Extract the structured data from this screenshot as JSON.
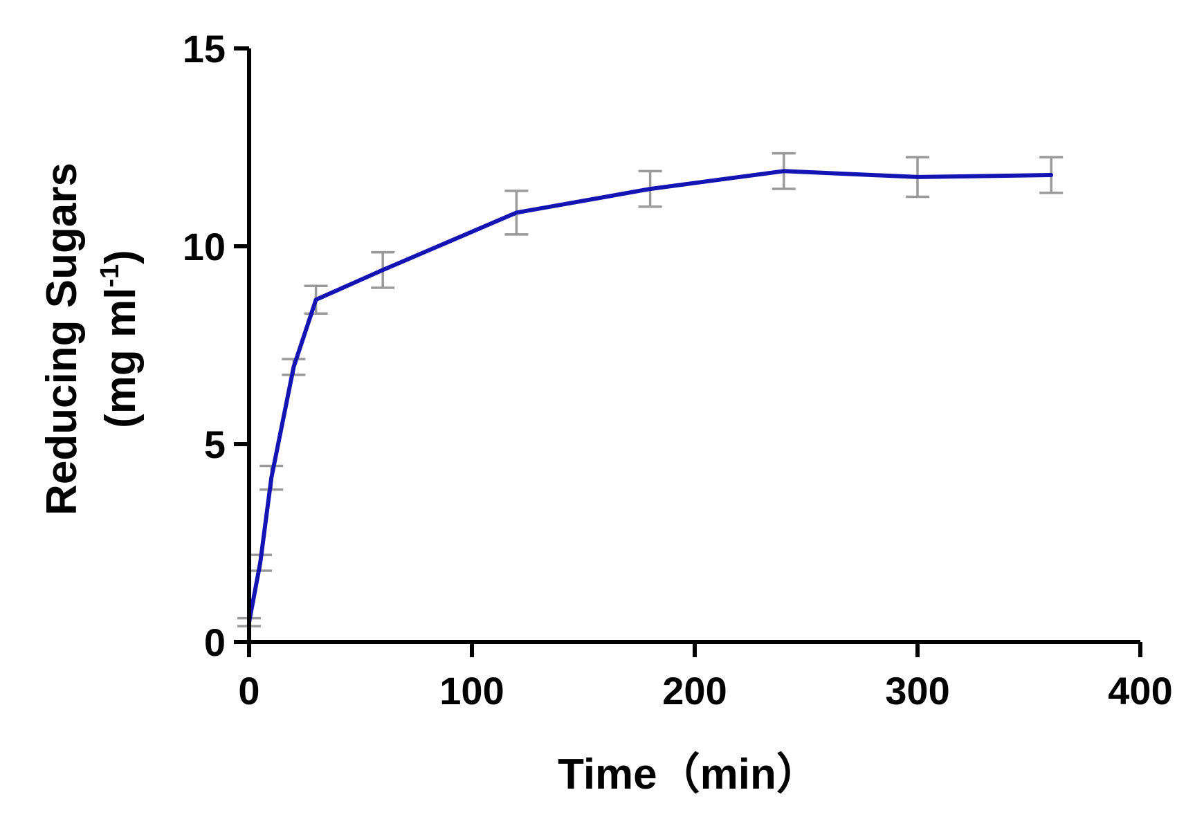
{
  "chart_data": {
    "type": "line",
    "xlabel": "Time（min）",
    "ylabel_line1": "Reducing Sugars",
    "ylabel_line2_main": "(mg ml",
    "ylabel_line2_sup": "-1",
    "ylabel_line2_end": ")",
    "xlim": [
      0,
      400
    ],
    "ylim": [
      0,
      15
    ],
    "xticks": [
      0,
      100,
      200,
      300,
      400
    ],
    "yticks": [
      0,
      5,
      10,
      15
    ],
    "grid": false,
    "series": [
      {
        "color": "#1414b4",
        "error_color": "#9a9a9a",
        "x": [
          0,
          5,
          10,
          20,
          30,
          60,
          120,
          180,
          240,
          300,
          360
        ],
        "y": [
          0.5,
          2.0,
          4.15,
          6.95,
          8.65,
          9.4,
          10.85,
          11.45,
          11.9,
          11.75,
          11.8
        ],
        "err": [
          0.1,
          0.2,
          0.3,
          0.2,
          0.35,
          0.45,
          0.55,
          0.45,
          0.45,
          0.5,
          0.45
        ]
      }
    ]
  }
}
